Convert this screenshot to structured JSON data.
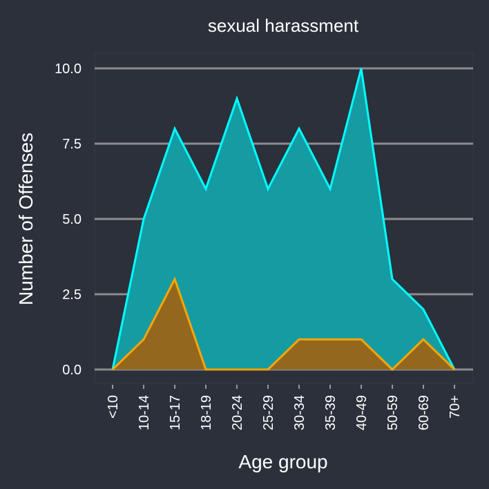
{
  "chart_data": {
    "type": "area",
    "title": "sexual harassment",
    "xlabel": "Age group",
    "ylabel": "Number of Offenses",
    "categories": [
      "<10",
      "10-14",
      "15-17",
      "18-19",
      "20-24",
      "25-29",
      "30-34",
      "35-39",
      "40-49",
      "50-59",
      "60-69",
      "70+"
    ],
    "ylim": [
      0,
      10
    ],
    "yticks": [
      "0.0",
      "2.5",
      "5.0",
      "7.5",
      "10.0"
    ],
    "grid": "horizontal",
    "series": [
      {
        "values": [
          0,
          5,
          8,
          6,
          9,
          6,
          8,
          6,
          10,
          3,
          2,
          0
        ],
        "line_color": "#00ffff",
        "fill_color": "#159ca3"
      },
      {
        "values": [
          0,
          1,
          3,
          0,
          0,
          0,
          1,
          1,
          1,
          0,
          1,
          0
        ],
        "line_color": "#ffa500",
        "fill_color": "#93681e"
      }
    ],
    "colors": {
      "background": "#2b303b",
      "grid": "#8c8c8c",
      "text": "#ffffff"
    }
  }
}
